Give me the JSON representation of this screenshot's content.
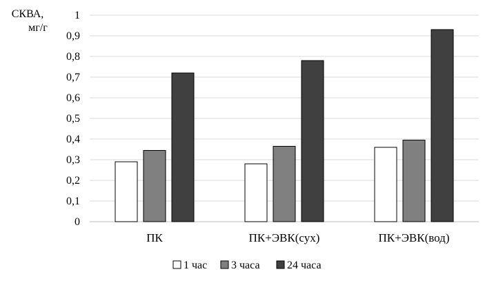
{
  "chart_data": {
    "type": "bar",
    "ylabel_lines": [
      "СКВА,",
      "мг/г"
    ],
    "xlabel": "",
    "categories": [
      "ПК",
      "ПК+ЭВК(сух)",
      "ПК+ЭВК(вод)"
    ],
    "series": [
      {
        "name": "1 час",
        "color": "#ffffff",
        "values": [
          0.29,
          0.28,
          0.36
        ]
      },
      {
        "name": "3 часа",
        "color": "#808080",
        "values": [
          0.345,
          0.365,
          0.395
        ]
      },
      {
        "name": "24 часа",
        "color": "#404040",
        "values": [
          0.72,
          0.78,
          0.93
        ]
      }
    ],
    "ylim": [
      0,
      1
    ],
    "yticks": [
      "0",
      "0,1",
      "0,2",
      "0,3",
      "0,4",
      "0,5",
      "0,6",
      "0,7",
      "0,8",
      "0,9",
      "1"
    ],
    "grid": true,
    "legend_position": "bottom"
  }
}
